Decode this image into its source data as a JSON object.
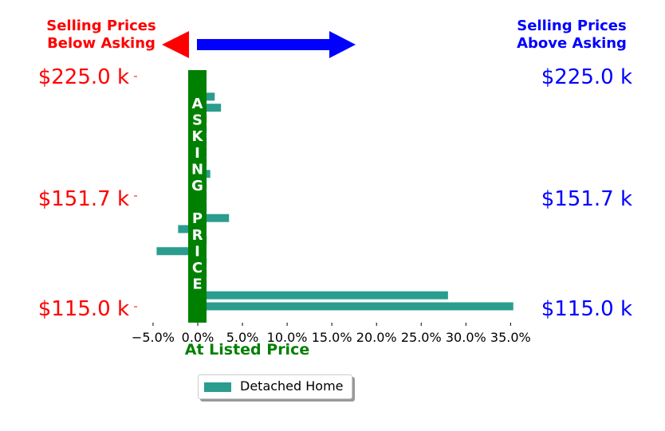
{
  "header": {
    "left_line1": "Selling Prices",
    "left_line2": "Below Asking",
    "right_line1": "Selling Prices",
    "right_line2": "Above Asking"
  },
  "colors": {
    "below": "#ff0000",
    "above": "#0000ff",
    "asking": "#008000",
    "bars": "#2a9d8f"
  },
  "price_labels": [
    "$225.0 k",
    "$151.7 k",
    "$115.0 k"
  ],
  "asking_column": [
    "A",
    "S",
    "K",
    "I",
    "N",
    "G",
    "",
    "P",
    "R",
    "I",
    "C",
    "E"
  ],
  "at_listed_label": "At Listed Price",
  "legend": {
    "label": "Detached Home"
  },
  "chart_data": {
    "type": "bar",
    "orientation": "horizontal",
    "series": [
      {
        "name": "Detached Home",
        "values": [
          35.3,
          28.0,
          1.0,
          1.0,
          1.0,
          -4.6,
          1.0,
          -2.2,
          3.5,
          1.0,
          1.0,
          1.0,
          1.4,
          1.0,
          1.0,
          1.0,
          1.0,
          1.0,
          2.6,
          1.9
        ]
      }
    ],
    "xticks": [
      "−5.0%",
      "0.0%",
      "5.0%",
      "10.0%",
      "15.0%",
      "20.0%",
      "25.0%",
      "30.0%",
      "35.0%"
    ],
    "xtick_values": [
      -5,
      0,
      5,
      10,
      15,
      20,
      25,
      30,
      35
    ],
    "xlim": [
      -6.5,
      36
    ],
    "ytick_labels": [
      "$115.0 k",
      "$151.7 k",
      "$225.0 k"
    ],
    "grid": false,
    "legend_position": "bottom-center"
  }
}
